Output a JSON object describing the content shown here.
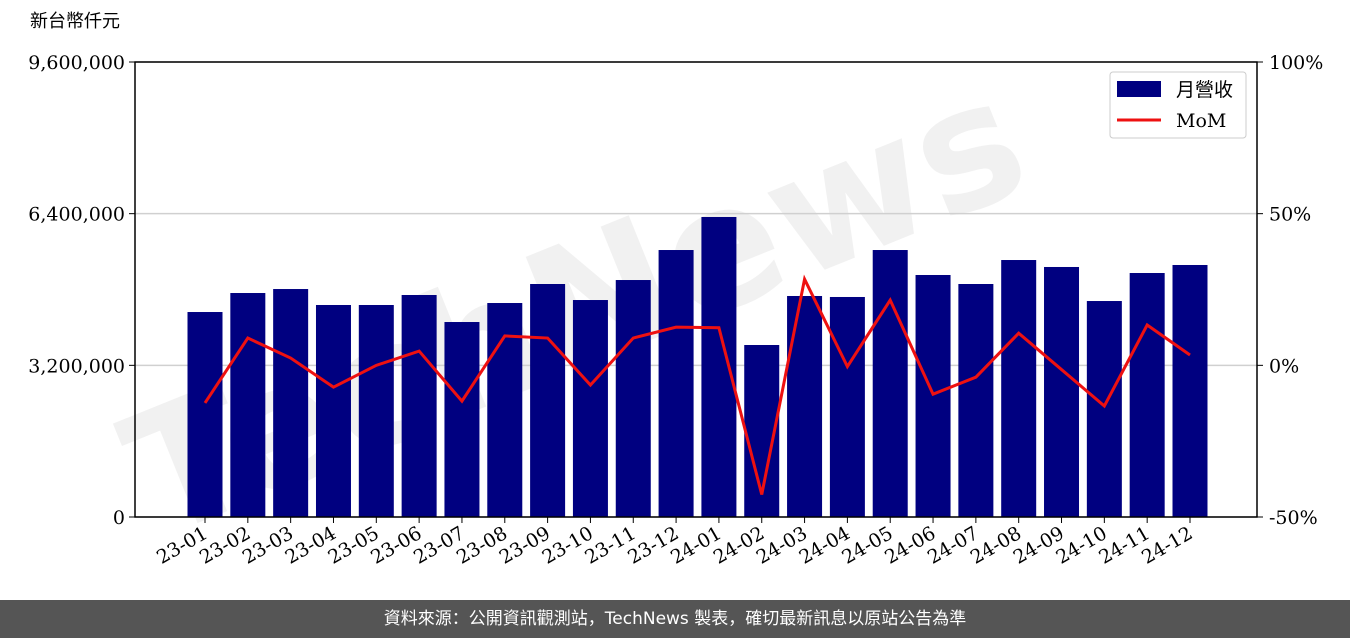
{
  "chart_data": {
    "type": "bar_line",
    "y_label": "新台幣仟元",
    "watermark": "TechNews",
    "categories": [
      "23-01",
      "23-02",
      "23-03",
      "23-04",
      "23-05",
      "23-06",
      "23-07",
      "23-08",
      "23-09",
      "23-10",
      "23-11",
      "23-12",
      "24-01",
      "24-02",
      "24-03",
      "24-04",
      "24-05",
      "24-06",
      "24-07",
      "24-08",
      "24-09",
      "24-10",
      "24-11",
      "24-12"
    ],
    "series": [
      {
        "name": "月營收",
        "color": "#000080",
        "values": [
          4325000,
          4726000,
          4810000,
          4473000,
          4473000,
          4684000,
          4114000,
          4515000,
          4916000,
          4578000,
          5000000,
          5633000,
          6330000,
          3629000,
          4663000,
          4642000,
          5633000,
          5106000,
          4916000,
          5422000,
          5275000,
          4557000,
          5148000,
          5317000
        ]
      },
      {
        "name": "MoM",
        "color": "#ee1111",
        "axis": "y2",
        "values": [
          -12.4,
          9.0,
          2.4,
          -7.2,
          0.0,
          4.7,
          -11.8,
          9.7,
          9.0,
          -6.5,
          9.0,
          12.6,
          12.4,
          -42.6,
          28.4,
          -0.4,
          21.5,
          -9.5,
          -3.9,
          10.6,
          -1.4,
          -13.4,
          13.3,
          3.4
        ]
      }
    ],
    "ylim": [
      0,
      9600000
    ],
    "yticks": [
      {
        "value": 0,
        "label": "0"
      },
      {
        "value": 3200000,
        "label": "3,200,000"
      },
      {
        "value": 6400000,
        "label": "6,400,000"
      },
      {
        "value": 9600000,
        "label": "9,600,000"
      }
    ],
    "y2lim": [
      -50,
      100
    ],
    "y2ticks": [
      {
        "value": -50,
        "label": "-50%"
      },
      {
        "value": 0,
        "label": "0%"
      },
      {
        "value": 50,
        "label": "50%"
      },
      {
        "value": 100,
        "label": "100%"
      }
    ],
    "grid": true,
    "legend": "upper right"
  },
  "footer": "資料來源：公開資訊觀測站，TechNews 製表，確切最新訊息以原站公告為準"
}
